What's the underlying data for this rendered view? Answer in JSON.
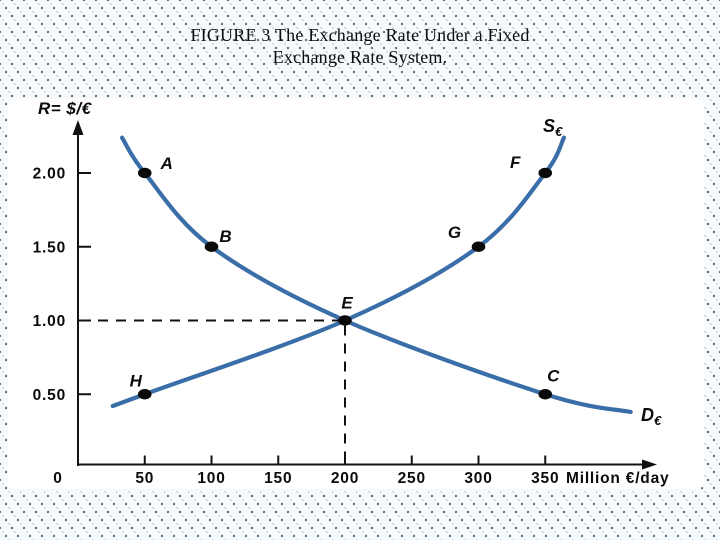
{
  "title": {
    "line1": "FIGURE 3 The Exchange Rate Under a Fixed",
    "line2": "Exchange Rate System."
  },
  "chart_data": {
    "type": "line",
    "title": "FIGURE 3 The Exchange Rate Under a Fixed Exchange Rate System.",
    "ylabel": "R= $/€",
    "x_unit_label": "Million €/day",
    "x_ticks": [
      "0",
      "50",
      "100",
      "150",
      "200",
      "250",
      "300",
      "350"
    ],
    "y_ticks": [
      "0.50",
      "1.00",
      "1.50",
      "2.00"
    ],
    "xlim": [
      0,
      440
    ],
    "ylim": [
      0,
      2.35
    ],
    "grid": false,
    "curves": [
      {
        "name": "demand",
        "label_main": "D",
        "label_sub": "€",
        "color": "#3a6ea8",
        "points": [
          {
            "label": "A",
            "x": 50,
            "y": 2.0
          },
          {
            "label": "B",
            "x": 100,
            "y": 1.5
          },
          {
            "label": "E",
            "x": 200,
            "y": 1.0
          },
          {
            "label": "C",
            "x": 350,
            "y": 0.5
          }
        ],
        "path_x": [
          33,
          50,
          100,
          200,
          350,
          414
        ],
        "path_y": [
          2.24,
          2.0,
          1.5,
          1.0,
          0.5,
          0.38
        ]
      },
      {
        "name": "supply",
        "label_main": "S",
        "label_sub": "€",
        "color": "#3a6ea8",
        "points": [
          {
            "label": "H",
            "x": 50,
            "y": 0.5
          },
          {
            "label": "E",
            "x": 200,
            "y": 1.0
          },
          {
            "label": "G",
            "x": 300,
            "y": 1.5
          },
          {
            "label": "F",
            "x": 350,
            "y": 2.0
          }
        ],
        "path_x": [
          26,
          50,
          200,
          300,
          350,
          364
        ],
        "path_y": [
          0.42,
          0.5,
          1.0,
          1.5,
          2.0,
          2.24
        ]
      }
    ],
    "equilibrium": {
      "label": "E",
      "x": 200,
      "y": 1.0
    },
    "dashed_guides": {
      "horizontal_at": 1.0,
      "vertical_at": 200
    }
  },
  "colors": {
    "curve": "#3a6ea8",
    "axis": "#111111",
    "dot": "#0a0a0a",
    "text": "#0b0b0b",
    "panel": "#ffffff"
  }
}
